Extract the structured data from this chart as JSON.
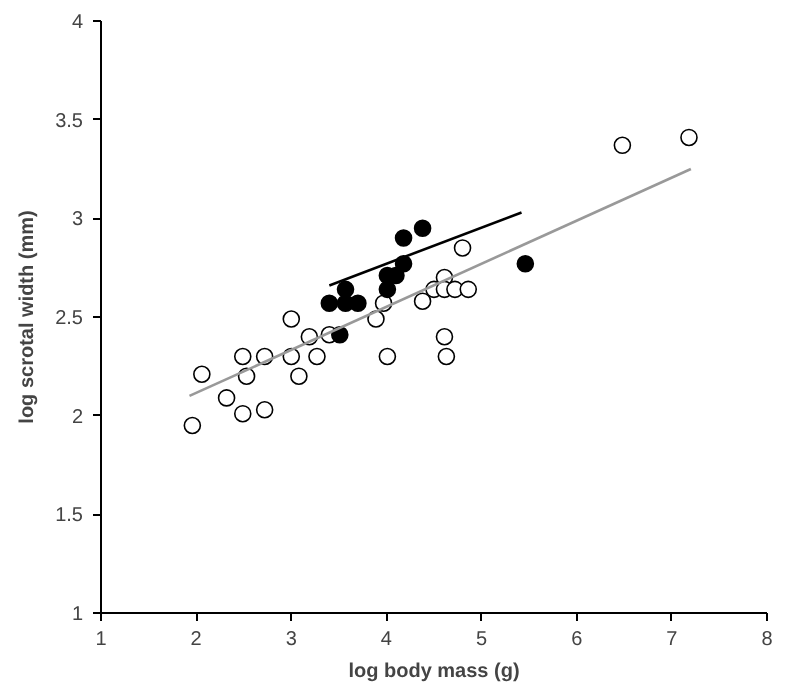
{
  "chart_data": {
    "type": "scatter",
    "xlabel": "log body mass (g)",
    "ylabel": "log scrotal width (mm)",
    "xlim": [
      1,
      8
    ],
    "ylim": [
      1,
      4
    ],
    "xticks": [
      1,
      2,
      3,
      4,
      5,
      6,
      7,
      8
    ],
    "yticks": [
      1,
      1.5,
      2,
      2.5,
      3,
      3.5,
      4
    ],
    "grid": false,
    "series": [
      {
        "marker": "circle",
        "color": "#ffffff",
        "x": [
          1.96,
          2.06,
          2.32,
          2.49,
          2.49,
          2.53,
          2.72,
          2.72,
          3.0,
          3.0,
          3.08,
          3.19,
          3.27,
          3.4,
          3.89,
          3.97,
          4.01,
          4.38,
          4.5,
          4.8,
          4.61,
          4.61,
          4.72,
          4.86,
          4.61,
          4.63,
          6.48,
          7.18
        ],
        "values": [
          1.95,
          2.21,
          2.09,
          2.01,
          2.3,
          2.2,
          2.03,
          2.3,
          2.49,
          2.3,
          2.2,
          2.4,
          2.3,
          2.41,
          2.49,
          2.57,
          2.3,
          2.58,
          2.64,
          2.85,
          2.7,
          2.64,
          2.64,
          2.64,
          2.4,
          2.3,
          3.37,
          3.41
        ]
      },
      {
        "marker": "circle",
        "color": "#000000",
        "x": [
          3.4,
          3.51,
          3.57,
          3.57,
          3.7,
          4.01,
          4.01,
          4.1,
          4.18,
          4.18,
          4.38,
          5.46
        ],
        "values": [
          2.57,
          2.41,
          2.64,
          2.57,
          2.57,
          2.64,
          2.71,
          2.71,
          2.77,
          2.9,
          2.95,
          2.77
        ]
      },
      {
        "type": "line",
        "marker": "none",
        "color": "#999999",
        "x": [
          1.93,
          7.2
        ],
        "values": [
          2.1,
          3.25
        ]
      },
      {
        "type": "line",
        "marker": "none",
        "color": "#000000",
        "x": [
          3.4,
          5.42
        ],
        "values": [
          2.66,
          3.03
        ]
      }
    ]
  }
}
